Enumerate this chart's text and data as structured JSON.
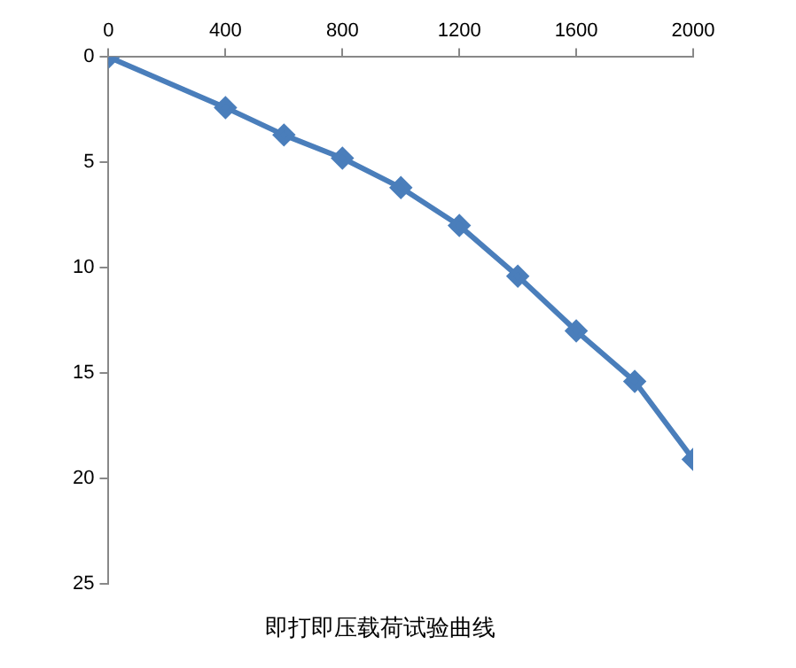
{
  "chart_data": {
    "type": "line",
    "title": "即打即压载荷试验曲线",
    "x": [
      0,
      400,
      600,
      800,
      1000,
      1200,
      1400,
      1600,
      1800,
      2000
    ],
    "series": [
      {
        "color": "#4a7ebb",
        "values": [
          0,
          2.4,
          3.7,
          4.8,
          6.2,
          8.0,
          10.4,
          13.0,
          15.4,
          19.1
        ]
      }
    ],
    "xlim": [
      0,
      2000
    ],
    "xticks": [
      0,
      400,
      800,
      1200,
      1600,
      2000
    ],
    "ylim": [
      25,
      0
    ],
    "yticks": [
      0,
      5,
      10,
      15,
      20,
      25
    ],
    "grid": false,
    "legend": false,
    "marker": "diamond",
    "line_style": "solid"
  }
}
